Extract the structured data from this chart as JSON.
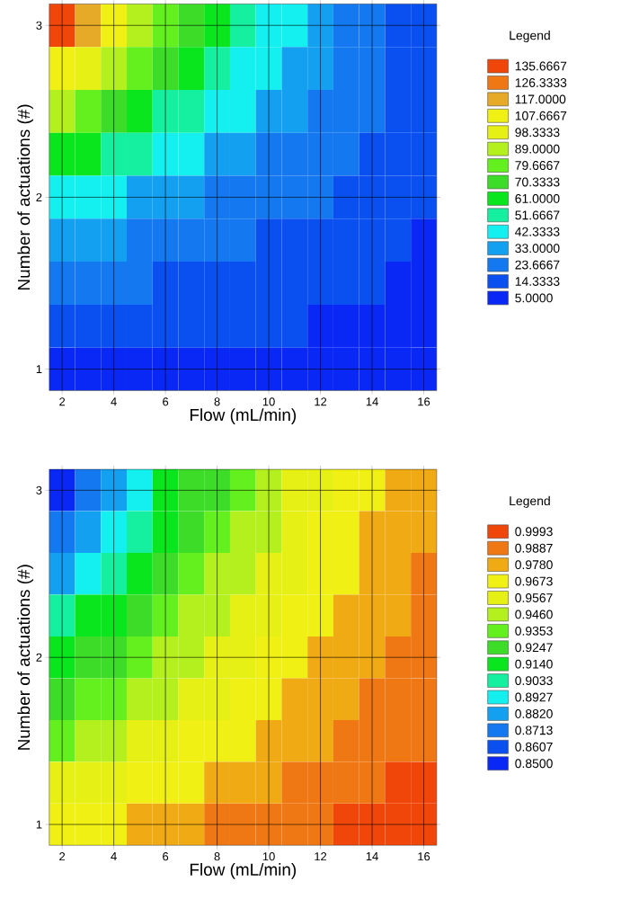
{
  "chart_data": [
    {
      "type": "heatmap",
      "xlabel": "Flow (mL/min)",
      "ylabel": "Number of actuations (#)",
      "clabel": "Legend",
      "grid": true,
      "categories": [
        "2",
        null,
        "4",
        null,
        "6",
        null,
        "8",
        null,
        "10",
        null,
        "12",
        null,
        "14",
        null,
        "16"
      ],
      "y_categories": [
        "3",
        null,
        null,
        null,
        "2",
        null,
        null,
        null,
        "1"
      ],
      "cells": [
        [
          135.6667,
          117,
          107.6667,
          89,
          79.6667,
          70.3333,
          61,
          51.6667,
          42.3333,
          42.3333,
          33,
          23.6667,
          23.6667,
          14.3333,
          14.3333
        ],
        [
          107.6667,
          98.3333,
          89,
          79.6667,
          70.3333,
          61,
          51.6667,
          42.3333,
          42.3333,
          33,
          33,
          23.6667,
          23.6667,
          14.3333,
          14.3333
        ],
        [
          89,
          79.6667,
          70.3333,
          61,
          51.6667,
          51.6667,
          42.3333,
          42.3333,
          33,
          33,
          23.6667,
          23.6667,
          23.6667,
          14.3333,
          14.3333
        ],
        [
          61,
          61,
          51.6667,
          51.6667,
          42.3333,
          42.3333,
          33,
          33,
          23.6667,
          23.6667,
          23.6667,
          23.6667,
          14.3333,
          14.3333,
          14.3333
        ],
        [
          42.3333,
          42.3333,
          42.3333,
          33,
          33,
          33,
          23.6667,
          23.6667,
          23.6667,
          23.6667,
          23.6667,
          14.3333,
          14.3333,
          14.3333,
          14.3333
        ],
        [
          33,
          33,
          33,
          23.6667,
          23.6667,
          23.6667,
          23.6667,
          23.6667,
          14.3333,
          14.3333,
          14.3333,
          14.3333,
          14.3333,
          14.3333,
          5
        ],
        [
          23.6667,
          23.6667,
          23.6667,
          23.6667,
          14.3333,
          14.3333,
          14.3333,
          14.3333,
          14.3333,
          14.3333,
          14.3333,
          14.3333,
          14.3333,
          5,
          5
        ],
        [
          14.3333,
          14.3333,
          14.3333,
          14.3333,
          14.3333,
          14.3333,
          14.3333,
          14.3333,
          14.3333,
          14.3333,
          5,
          5,
          5,
          5,
          5
        ],
        [
          5,
          5,
          5,
          5,
          5,
          5,
          5,
          5,
          5,
          5,
          5,
          5,
          5,
          5,
          5
        ]
      ],
      "cticks": [
        {
          "value": 5,
          "label": "5.0000"
        },
        {
          "value": 14.3333,
          "label": "14.3333"
        },
        {
          "value": 23.6667,
          "label": "23.6667"
        },
        {
          "value": 33,
          "label": "33.0000"
        },
        {
          "value": 42.3333,
          "label": "42.3333"
        },
        {
          "value": 51.6667,
          "label": "51.6667"
        },
        {
          "value": 61,
          "label": "61.0000"
        },
        {
          "value": 70.3333,
          "label": "70.3333"
        },
        {
          "value": 79.6667,
          "label": "79.6667"
        },
        {
          "value": 89,
          "label": "89.0000"
        },
        {
          "value": 98.3333,
          "label": "98.3333"
        },
        {
          "value": 107.6667,
          "label": "107.6667"
        },
        {
          "value": 117,
          "label": "117.0000"
        },
        {
          "value": 126.3333,
          "label": "126.3333"
        },
        {
          "value": 135.6667,
          "label": "135.6667"
        }
      ],
      "colors": [
        "#0a28f5",
        "#0a50f0",
        "#1478f0",
        "#14a0f0",
        "#14f0f0",
        "#14f0a0",
        "#0ae61e",
        "#3cdc28",
        "#64f01e",
        "#b4f01e",
        "#e6f014",
        "#f0f014",
        "#e6aa28",
        "#f07814",
        "#f0460a"
      ]
    },
    {
      "type": "heatmap",
      "xlabel": "Flow (mL/min)",
      "ylabel": "Number of actuations (#)",
      "clabel": "Legend",
      "grid": true,
      "categories": [
        "2",
        null,
        "4",
        null,
        "6",
        null,
        "8",
        null,
        "10",
        null,
        "12",
        null,
        "14",
        null,
        "16"
      ],
      "y_categories": [
        "3",
        null,
        null,
        null,
        "2",
        null,
        null,
        null,
        "1"
      ],
      "cells": [
        [
          0.85,
          0.8713,
          0.882,
          0.8927,
          0.914,
          0.9247,
          0.9247,
          0.9353,
          0.946,
          0.9567,
          0.9567,
          0.9673,
          0.9673,
          0.978,
          0.978
        ],
        [
          0.8713,
          0.882,
          0.8927,
          0.9033,
          0.914,
          0.9247,
          0.9353,
          0.946,
          0.946,
          0.9567,
          0.9673,
          0.9673,
          0.978,
          0.978,
          0.978
        ],
        [
          0.882,
          0.8927,
          0.9033,
          0.914,
          0.9247,
          0.9353,
          0.946,
          0.946,
          0.9567,
          0.9567,
          0.9673,
          0.9673,
          0.978,
          0.978,
          0.9887
        ],
        [
          0.9033,
          0.914,
          0.914,
          0.9247,
          0.9353,
          0.946,
          0.946,
          0.9567,
          0.9567,
          0.9673,
          0.9673,
          0.978,
          0.978,
          0.978,
          0.9887
        ],
        [
          0.914,
          0.9247,
          0.9247,
          0.9353,
          0.946,
          0.946,
          0.9567,
          0.9567,
          0.9673,
          0.9673,
          0.978,
          0.978,
          0.978,
          0.9887,
          0.9887
        ],
        [
          0.9247,
          0.9353,
          0.9353,
          0.946,
          0.946,
          0.9567,
          0.9567,
          0.9673,
          0.9673,
          0.978,
          0.978,
          0.978,
          0.9887,
          0.9887,
          0.9887
        ],
        [
          0.9353,
          0.946,
          0.946,
          0.9567,
          0.9567,
          0.9673,
          0.9673,
          0.9673,
          0.978,
          0.978,
          0.978,
          0.9887,
          0.9887,
          0.9887,
          0.9887
        ],
        [
          0.9567,
          0.9567,
          0.9567,
          0.9673,
          0.9673,
          0.9673,
          0.978,
          0.978,
          0.978,
          0.9887,
          0.9887,
          0.9887,
          0.9887,
          0.9993,
          0.9993
        ],
        [
          0.9673,
          0.9673,
          0.9673,
          0.978,
          0.978,
          0.978,
          0.9887,
          0.9887,
          0.9887,
          0.9887,
          0.9887,
          0.9993,
          0.9993,
          0.9993,
          0.9993
        ]
      ],
      "cticks": [
        {
          "value": 0.85,
          "label": "0.8500"
        },
        {
          "value": 0.8607,
          "label": "0.8607"
        },
        {
          "value": 0.8713,
          "label": "0.8713"
        },
        {
          "value": 0.882,
          "label": "0.8820"
        },
        {
          "value": 0.8927,
          "label": "0.8927"
        },
        {
          "value": 0.9033,
          "label": "0.9033"
        },
        {
          "value": 0.914,
          "label": "0.9140"
        },
        {
          "value": 0.9247,
          "label": "0.9247"
        },
        {
          "value": 0.9353,
          "label": "0.9353"
        },
        {
          "value": 0.946,
          "label": "0.9460"
        },
        {
          "value": 0.9567,
          "label": "0.9567"
        },
        {
          "value": 0.9673,
          "label": "0.9673"
        },
        {
          "value": 0.978,
          "label": "0.9780"
        },
        {
          "value": 0.9887,
          "label": "0.9887"
        },
        {
          "value": 0.9993,
          "label": "0.9993"
        }
      ],
      "colors": [
        "#0a28f5",
        "#0a50f0",
        "#1478f0",
        "#14a0f0",
        "#14f0f0",
        "#14f0a0",
        "#0ae61e",
        "#3cdc28",
        "#64f01e",
        "#b4f01e",
        "#e6f014",
        "#f0f014",
        "#f0aa14",
        "#f07814",
        "#f0460a"
      ]
    }
  ]
}
